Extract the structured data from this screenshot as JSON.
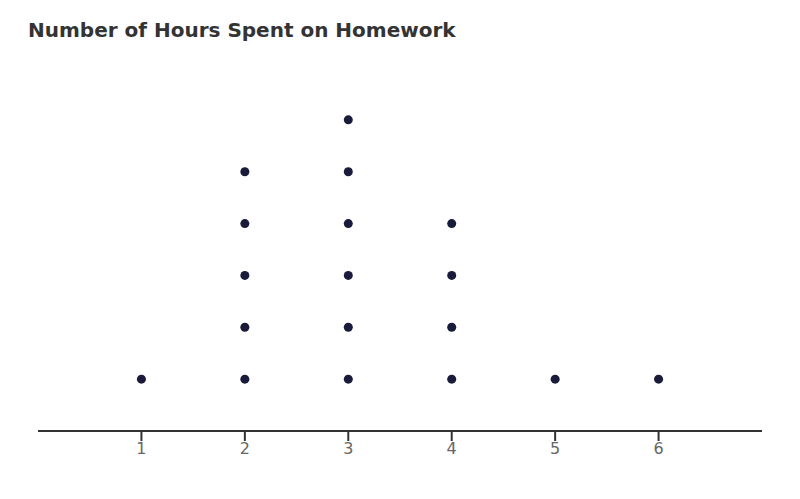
{
  "chart_data": {
    "type": "dot_plot",
    "title": "Number of Hours Spent on Homework",
    "x": [
      1,
      2,
      3,
      4,
      5,
      6
    ],
    "values": [
      1,
      5,
      6,
      4,
      1,
      1
    ],
    "color": "#1a1a3a",
    "xlim": [
      0,
      7
    ],
    "xticks": [
      1,
      2,
      3,
      4,
      5,
      6
    ],
    "ylim": [
      0,
      7
    ],
    "tick_labels": "x",
    "grid": false,
    "marker": "circle"
  }
}
